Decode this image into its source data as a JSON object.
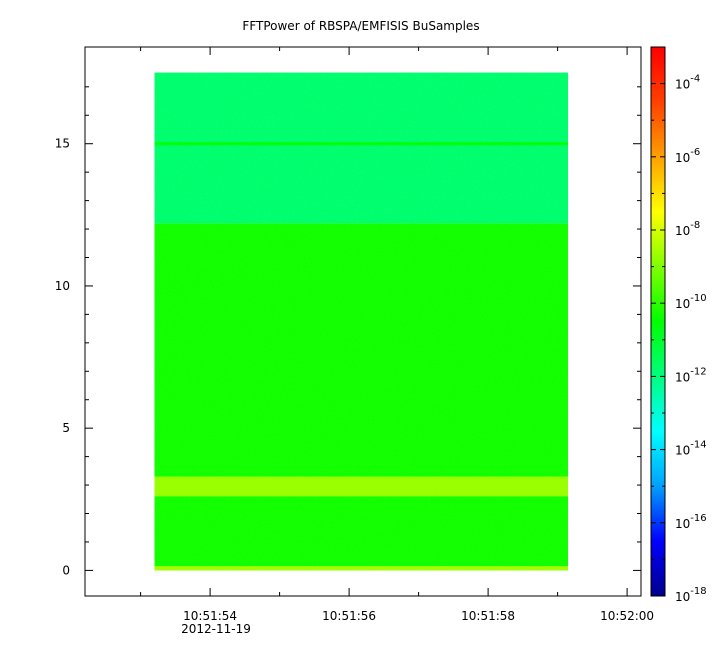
{
  "chart_data": {
    "type": "heatmap",
    "title": "FFTPower of RBSPA/EMFISIS  BuSamples",
    "xlabel": "",
    "ylabel": "",
    "x_ticks": [
      "10:51:54",
      "10:51:56",
      "10:51:58",
      "10:52:00"
    ],
    "x_tick_values_sec": [
      54,
      56,
      58,
      60
    ],
    "x_minor_tick_values_sec": [
      53,
      55,
      57,
      59
    ],
    "x_range_sec": [
      52.2,
      60.2
    ],
    "x_time_prefix": "10:51:",
    "date_label": "2012-11-19",
    "y_ticks": [
      "0",
      "5",
      "10",
      "15"
    ],
    "y_tick_values": [
      0,
      5,
      10,
      15
    ],
    "y_minor_tick_values": [
      1,
      2,
      3,
      4,
      6,
      7,
      8,
      9,
      11,
      12,
      13,
      14,
      16,
      17
    ],
    "y_range": [
      -0.9,
      18.4
    ],
    "data_x_range_sec": [
      53.2,
      59.15
    ],
    "data_y_range": [
      0,
      17.5
    ],
    "regions": [
      {
        "name": "noise-floor",
        "y_range": [
          0,
          12.2
        ],
        "log10_power": -10.3
      },
      {
        "name": "upper-band",
        "y_range": [
          12.2,
          17.5
        ],
        "log10_power": -11.8
      },
      {
        "name": "line-15",
        "y_range": [
          14.95,
          15.05
        ],
        "log10_power": -10.5
      },
      {
        "name": "band-3",
        "y_range": [
          2.6,
          3.3
        ],
        "log10_power": -8.7
      },
      {
        "name": "band-0",
        "y_range": [
          0,
          0.15
        ],
        "log10_power": -8.6
      }
    ],
    "colorbar": {
      "scale": "log",
      "range": [
        1e-18,
        0.001
      ],
      "ticks": [
        {
          "base": "10",
          "exp": "-4",
          "log": -4
        },
        {
          "base": "10",
          "exp": "-6",
          "log": -6
        },
        {
          "base": "10",
          "exp": "-8",
          "log": -8
        },
        {
          "base": "10",
          "exp": "-10",
          "log": -10
        },
        {
          "base": "10",
          "exp": "-12",
          "log": -12
        },
        {
          "base": "10",
          "exp": "-14",
          "log": -14
        },
        {
          "base": "10",
          "exp": "-16",
          "log": -16
        },
        {
          "base": "10",
          "exp": "-18",
          "log": -18
        }
      ],
      "colors": [
        "#00008c",
        "#0000ff",
        "#00a0ff",
        "#00ffff",
        "#00ff80",
        "#00ff00",
        "#80ff00",
        "#ffff00",
        "#ffa000",
        "#ff4000",
        "#ff0000"
      ]
    }
  }
}
